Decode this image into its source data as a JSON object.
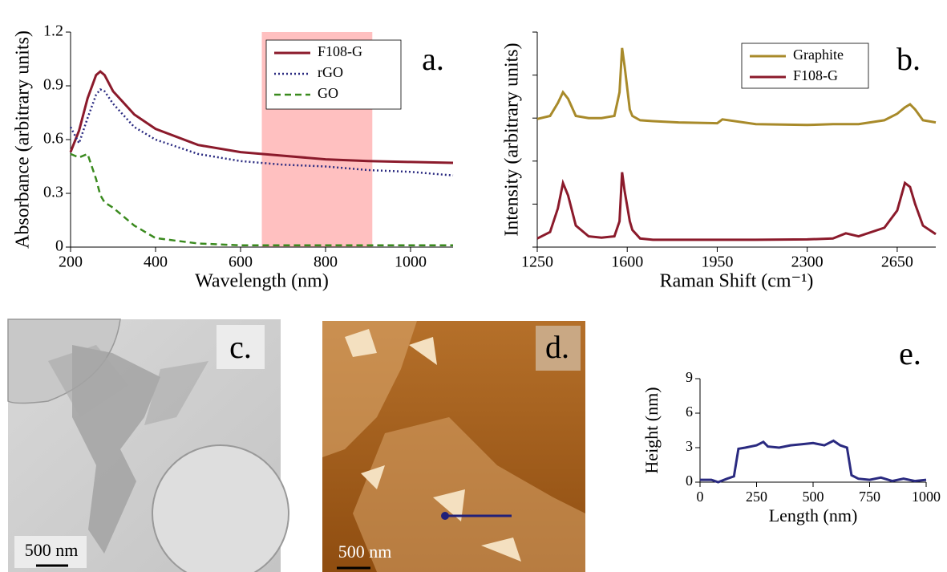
{
  "chart_data": [
    {
      "type": "line",
      "panel_label": "a.",
      "x_label": "Wavelength (nm)",
      "y_label": "Absorbance (arbitrary units)",
      "x": [
        200,
        220,
        240,
        260,
        270,
        280,
        300,
        350,
        400,
        500,
        600,
        700,
        800,
        900,
        1000,
        1100
      ],
      "series": [
        {
          "name": "F108-G",
          "color": "#8b1a2b",
          "dash": "solid",
          "values": [
            0.53,
            0.65,
            0.83,
            0.96,
            0.98,
            0.96,
            0.87,
            0.74,
            0.66,
            0.57,
            0.53,
            0.51,
            0.49,
            0.48,
            0.475,
            0.47
          ]
        },
        {
          "name": "rGO",
          "color": "#2a2a80",
          "dash": "dotted",
          "values": [
            0.67,
            0.58,
            0.72,
            0.85,
            0.88,
            0.87,
            0.8,
            0.67,
            0.6,
            0.52,
            0.48,
            0.46,
            0.45,
            0.43,
            0.42,
            0.4
          ]
        },
        {
          "name": "GO",
          "color": "#3a8a1e",
          "dash": "dashed",
          "values": [
            0.52,
            0.5,
            0.52,
            0.38,
            0.29,
            0.25,
            0.22,
            0.12,
            0.05,
            0.02,
            0.01,
            0.01,
            0.01,
            0.01,
            0.01,
            0.01
          ]
        }
      ],
      "highlight": {
        "x": [
          650,
          910
        ],
        "color": "#ffc0c0"
      },
      "xlim": [
        200,
        1100
      ],
      "xticks": [
        200,
        400,
        600,
        800,
        1000
      ],
      "ylim": [
        0,
        1.2
      ],
      "yticks": [
        0,
        0.3,
        0.6,
        0.9,
        1.2
      ],
      "ytick_labels": true
    },
    {
      "type": "line",
      "panel_label": "b.",
      "x_label": "Raman Shift (cm⁻¹)",
      "y_label": "Intensity (arbitrary units)",
      "x": [
        1250,
        1300,
        1330,
        1350,
        1370,
        1400,
        1450,
        1500,
        1550,
        1570,
        1580,
        1590,
        1610,
        1620,
        1650,
        1700,
        1800,
        1950,
        1970,
        2100,
        2300,
        2400,
        2450,
        2500,
        2600,
        2650,
        2680,
        2700,
        2720,
        2750,
        2800
      ],
      "series": [
        {
          "name": "Graphite",
          "color": "#a88a2a",
          "dash": "solid",
          "values": [
            2.98,
            3.05,
            3.35,
            3.6,
            3.45,
            3.05,
            3.0,
            3.0,
            3.05,
            3.6,
            4.63,
            4.2,
            3.2,
            3.05,
            2.95,
            2.93,
            2.9,
            2.88,
            2.97,
            2.86,
            2.84,
            2.86,
            2.86,
            2.86,
            2.95,
            3.1,
            3.25,
            3.32,
            3.2,
            2.95,
            2.9
          ]
        },
        {
          "name": "F108-G",
          "color": "#8b1a2b",
          "dash": "solid",
          "values": [
            0.2,
            0.35,
            0.9,
            1.49,
            1.2,
            0.5,
            0.25,
            0.22,
            0.25,
            0.6,
            1.74,
            1.3,
            0.6,
            0.4,
            0.2,
            0.17,
            0.17,
            0.17,
            0.17,
            0.17,
            0.18,
            0.2,
            0.32,
            0.25,
            0.45,
            0.85,
            1.49,
            1.4,
            1.0,
            0.5,
            0.3
          ]
        }
      ],
      "xlim": [
        1250,
        2800
      ],
      "xticks": [
        1250,
        1600,
        1950,
        2300,
        2650
      ],
      "ylim": [
        0,
        5
      ],
      "yticks": [
        0,
        1,
        2,
        3,
        4,
        5
      ],
      "ytick_labels": false
    },
    {
      "type": "line",
      "panel_label": "e.",
      "x_label": "Length (nm)",
      "y_label": "Height (nm)",
      "x": [
        0,
        50,
        80,
        120,
        150,
        170,
        200,
        250,
        280,
        300,
        350,
        400,
        450,
        500,
        550,
        590,
        620,
        650,
        670,
        700,
        750,
        800,
        850,
        900,
        950,
        1000
      ],
      "series": [
        {
          "color": "#2a2a80",
          "dash": "solid",
          "values": [
            0.2,
            0.2,
            0,
            0.3,
            0.5,
            2.9,
            3.0,
            3.2,
            3.5,
            3.1,
            3.0,
            3.2,
            3.3,
            3.4,
            3.2,
            3.6,
            3.2,
            3.0,
            0.6,
            0.3,
            0.2,
            0.4,
            0.1,
            0.3,
            0.1,
            0.2
          ]
        }
      ],
      "xlim": [
        0,
        1000
      ],
      "xticks": [
        0,
        250,
        500,
        750,
        1000
      ],
      "ylim": [
        0,
        9
      ],
      "yticks": [
        0,
        3,
        6,
        9
      ],
      "ytick_labels": true
    }
  ],
  "images": [
    {
      "label": "c.",
      "scale_bar": "500 nm"
    },
    {
      "label": "d.",
      "scale_bar": "500 nm"
    }
  ]
}
